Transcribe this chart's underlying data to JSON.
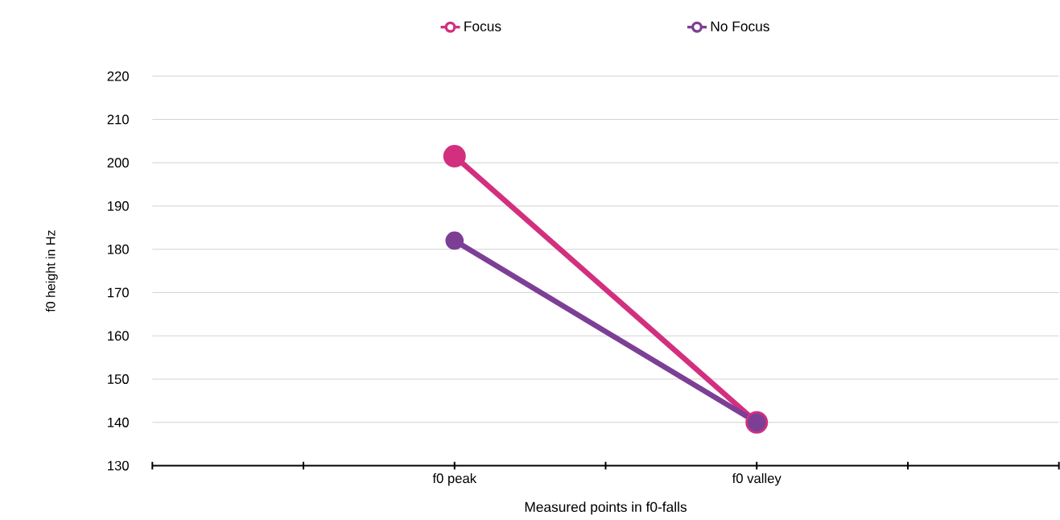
{
  "chart_data": {
    "type": "line",
    "xlabel": "Measured points in f0-falls",
    "ylabel": "f0 height in Hz",
    "categories": [
      null,
      "f0 peak",
      null,
      "f0 valley",
      null
    ],
    "series": [
      {
        "name": "Focus",
        "color": "#d2307f",
        "values": [
          null,
          201.5,
          null,
          140,
          null
        ]
      },
      {
        "name": "No Focus",
        "color": "#7d3f96",
        "values": [
          null,
          182,
          null,
          140,
          null
        ]
      }
    ],
    "ylim": [
      130,
      220
    ],
    "yticks": [
      130,
      140,
      150,
      160,
      170,
      180,
      190,
      200,
      210,
      220
    ],
    "grid": "y",
    "legend": "top",
    "marker": "circle",
    "line_style": "solid"
  }
}
